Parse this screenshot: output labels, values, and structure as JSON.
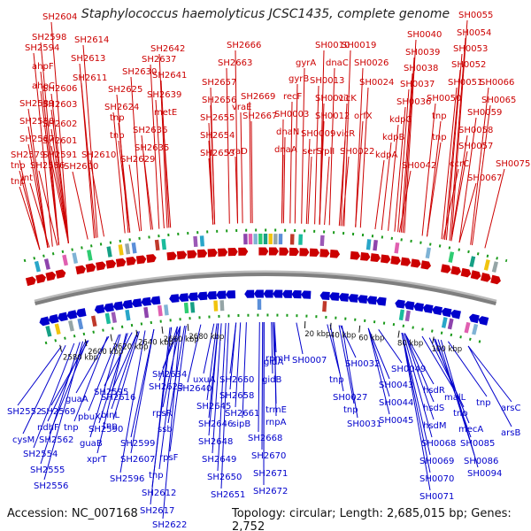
{
  "title": "Staphylococcus haemolyticus JCSC1435, complete genome",
  "accession": "Accession: NC_007168",
  "topology": "Topology: circular; Length: 2,685,015 bp; Genes: 2,752",
  "colors": {
    "forward": "#cc0000",
    "reverse": "#0000cc",
    "backbone": "#7f7f7f",
    "ticks": "#1a9a1a"
  },
  "ticks": [
    "2580 kbp",
    "2600 kbp",
    "2620 kbp",
    "2640 kbp",
    "2660 kbp",
    "2680 kbp",
    "20 kbp",
    "40 kbp",
    "60 kbp",
    "80 kbp",
    "100 kbp"
  ],
  "top_genes": [
    "SH2604",
    "SH2598",
    "SH2594",
    "ahpF",
    "ahpC",
    "SH2589",
    "SH2588",
    "SH2587",
    "SH2579",
    "tnp",
    "tnp",
    "int",
    "SH2603",
    "SH2606",
    "SH2602",
    "SH2601",
    "SH2591",
    "SH2586",
    "SH2600",
    "SH2614",
    "SH2613",
    "SH2611",
    "SH2610",
    "SH2625",
    "SH2624",
    "tnp",
    "tnp",
    "SH2630",
    "SH2637",
    "SH2642",
    "SH2641",
    "SH2639",
    "metE",
    "SH2636",
    "SH2635",
    "SH2629",
    "SH2666",
    "SH2663",
    "SH2657",
    "SH2656",
    "SH2655",
    "SH2654",
    "SH2653",
    "vraE",
    "vraD",
    "SH2669",
    "SH2667",
    "gyrA",
    "gyrB",
    "recF",
    "SH0003",
    "dnaN",
    "dnaA",
    "SH0010",
    "SH0013",
    "SH0011",
    "SH0012",
    "SH0009",
    "serS",
    "rplI",
    "vicR",
    "SH0019",
    "dnaC",
    "SH0026",
    "vicK",
    "SH0024",
    "orfX",
    "SH0022",
    "SH0040",
    "SH0039",
    "SH0038",
    "SH0037",
    "SH0036",
    "kdpC",
    "kdpB",
    "kdpA",
    "SH0042",
    "SH0055",
    "SH0054",
    "SH0053",
    "SH0052",
    "SH0051",
    "SH0050",
    "tnp",
    "tnp",
    "SH0059",
    "SH0058",
    "SH0057",
    "ccrC",
    "SH0067",
    "SH0066",
    "SH0065",
    "SH0075"
  ],
  "bottom_genes": [
    "SH2552",
    "SH2569",
    "cysM",
    "SH2562",
    "SH2554",
    "SH2555",
    "SH2556",
    "ndhF",
    "guaA",
    "pbuX",
    "tnp",
    "guaB",
    "SH2590",
    "SH2595",
    "SH2616",
    "binL",
    "tnp",
    "xprT",
    "SH2599",
    "SH2607",
    "SH2596",
    "tnp",
    "SH2612",
    "SH2617",
    "SH2622",
    "SH2623",
    "SH2634",
    "rpsR",
    "ssb",
    "rpsF",
    "uxuA",
    "SH2640",
    "SH2645",
    "SH2646",
    "SH2648",
    "SH2649",
    "SH2650",
    "SH2651",
    "SH2660",
    "SH2658",
    "SH2661",
    "sipB",
    "SH2668",
    "SH2670",
    "SH2671",
    "SH2672",
    "gidB",
    "gidA",
    "rpmH",
    "trmE",
    "rnpA",
    "SH0007",
    "tnp",
    "SH0027",
    "tnp",
    "SH0031",
    "SH0032",
    "SH0043",
    "SH0044",
    "SH0045",
    "SH0049",
    "hsdR",
    "hsdS",
    "hsdM",
    "SH0068",
    "SH0069",
    "SH0070",
    "SH0071",
    "malL",
    "tnp",
    "mecA",
    "SH0085",
    "SH0086",
    "SH0094",
    "tnp",
    "arsC",
    "arsB"
  ]
}
